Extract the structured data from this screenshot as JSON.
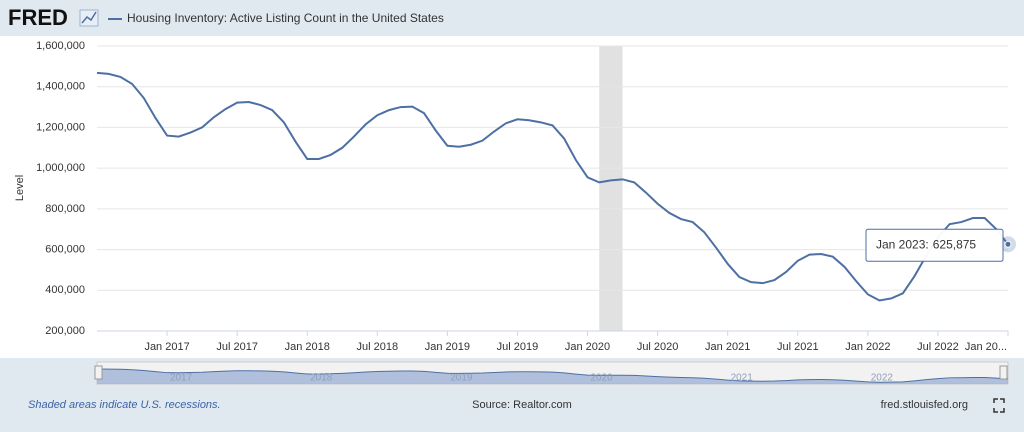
{
  "logo": "FRED",
  "chart_data": {
    "type": "line",
    "title": "Housing Inventory: Active Listing Count in the United States",
    "ylabel": "Level",
    "xlim": [
      "2016-07",
      "2023-01"
    ],
    "x": [
      "2016-07",
      "2016-08",
      "2016-09",
      "2016-10",
      "2016-11",
      "2016-12",
      "2017-01",
      "2017-02",
      "2017-03",
      "2017-04",
      "2017-05",
      "2017-06",
      "2017-07",
      "2017-08",
      "2017-09",
      "2017-10",
      "2017-11",
      "2017-12",
      "2018-01",
      "2018-02",
      "2018-03",
      "2018-04",
      "2018-05",
      "2018-06",
      "2018-07",
      "2018-08",
      "2018-09",
      "2018-10",
      "2018-11",
      "2018-12",
      "2019-01",
      "2019-02",
      "2019-03",
      "2019-04",
      "2019-05",
      "2019-06",
      "2019-07",
      "2019-08",
      "2019-09",
      "2019-10",
      "2019-11",
      "2019-12",
      "2020-01",
      "2020-02",
      "2020-03",
      "2020-04",
      "2020-05",
      "2020-06",
      "2020-07",
      "2020-08",
      "2020-09",
      "2020-10",
      "2020-11",
      "2020-12",
      "2021-01",
      "2021-02",
      "2021-03",
      "2021-04",
      "2021-05",
      "2021-06",
      "2021-07",
      "2021-08",
      "2021-09",
      "2021-10",
      "2021-11",
      "2021-12",
      "2022-01",
      "2022-02",
      "2022-03",
      "2022-04",
      "2022-05",
      "2022-06",
      "2022-07",
      "2022-08",
      "2022-09",
      "2022-10",
      "2022-11",
      "2022-12",
      "2023-01"
    ],
    "series": [
      {
        "name": "Housing Inventory: Active Listing Count in the United States",
        "color": "#4e6fa3",
        "values": [
          1468000,
          1463000,
          1448000,
          1414000,
          1345000,
          1247000,
          1160000,
          1155000,
          1175000,
          1200000,
          1250000,
          1290000,
          1322000,
          1325000,
          1310000,
          1285000,
          1225000,
          1130000,
          1045000,
          1045000,
          1065000,
          1100000,
          1155000,
          1215000,
          1260000,
          1285000,
          1300000,
          1302000,
          1270000,
          1185000,
          1110000,
          1105000,
          1115000,
          1135000,
          1180000,
          1220000,
          1240000,
          1235000,
          1225000,
          1210000,
          1145000,
          1040000,
          955000,
          930000,
          940000,
          945000,
          930000,
          880000,
          825000,
          780000,
          750000,
          735000,
          685000,
          610000,
          530000,
          465000,
          440000,
          435000,
          450000,
          490000,
          545000,
          575000,
          578000,
          565000,
          515000,
          445000,
          380000,
          350000,
          360000,
          385000,
          470000,
          570000,
          660000,
          725000,
          735000,
          755000,
          755000,
          700000,
          625875
        ]
      }
    ],
    "ylim": [
      200000,
      1600000
    ],
    "yticks": [
      {
        "value": 200000,
        "label": "200,000"
      },
      {
        "value": 400000,
        "label": "400,000"
      },
      {
        "value": 600000,
        "label": "600,000"
      },
      {
        "value": 800000,
        "label": "800,000"
      },
      {
        "value": 1000000,
        "label": "1,000,000"
      },
      {
        "value": 1200000,
        "label": "1,200,000"
      },
      {
        "value": 1400000,
        "label": "1,400,000"
      },
      {
        "value": 1600000,
        "label": "1,600,000"
      }
    ],
    "xticks": [
      {
        "value": "2017-01",
        "label": "Jan 2017"
      },
      {
        "value": "2017-07",
        "label": "Jul 2017"
      },
      {
        "value": "2018-01",
        "label": "Jan 2018"
      },
      {
        "value": "2018-07",
        "label": "Jul 2018"
      },
      {
        "value": "2019-01",
        "label": "Jan 2019"
      },
      {
        "value": "2019-07",
        "label": "Jul 2019"
      },
      {
        "value": "2020-01",
        "label": "Jan 2020"
      },
      {
        "value": "2020-07",
        "label": "Jul 2020"
      },
      {
        "value": "2021-01",
        "label": "Jan 2021"
      },
      {
        "value": "2021-07",
        "label": "Jul 2021"
      },
      {
        "value": "2022-01",
        "label": "Jan 2022"
      },
      {
        "value": "2022-07",
        "label": "Jul 2022"
      },
      {
        "value": "2023-01",
        "label": "Jan 20..."
      }
    ],
    "recessions": [
      [
        "2020-02",
        "2020-04"
      ]
    ],
    "grid": true,
    "tooltip": {
      "date_label": "Jan 2023:",
      "value_label": "625,875"
    },
    "navigator_ticks": [
      {
        "value": "2017-01",
        "label": "2017"
      },
      {
        "value": "2018-01",
        "label": "2018"
      },
      {
        "value": "2019-01",
        "label": "2019"
      },
      {
        "value": "2020-01",
        "label": "2020"
      },
      {
        "value": "2021-01",
        "label": "2021"
      },
      {
        "value": "2022-01",
        "label": "2022"
      }
    ]
  },
  "footer": {
    "recession_note": "Shaded areas indicate U.S. recessions.",
    "source": "Source: Realtor.com",
    "site": "fred.stlouisfed.org"
  }
}
